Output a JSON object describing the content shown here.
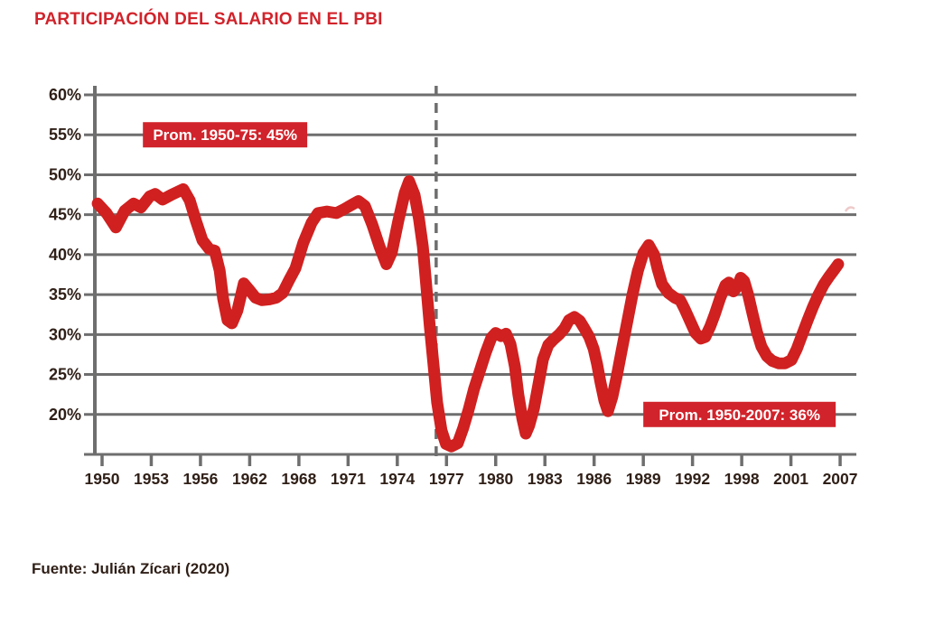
{
  "title": "PARTICIPACIÓN DEL SALARIO EN EL PBI",
  "source": "Fuente: Julián Zícari (2020)",
  "colors": {
    "accent_red": "#d1232b",
    "line_red": "#d02020",
    "grid_gray": "#6e6e6e",
    "text_dark": "#2f1f17",
    "annotation_text": "#ffffff",
    "background": "#ffffff"
  },
  "chart_data": {
    "type": "line",
    "title": "PARTICIPACIÓN DEL SALARIO EN EL PBI",
    "xlabel": "",
    "ylabel": "",
    "grid": true,
    "legend": false,
    "x_tick_labels": [
      "1950",
      "1953",
      "1956",
      "1962",
      "1968",
      "1971",
      "1974",
      "1977",
      "1980",
      "1983",
      "1986",
      "1989",
      "1992",
      "1998",
      "2001",
      "2007"
    ],
    "x_axis_note": "categorical ticks, evenly spaced",
    "y_ticks": [
      {
        "value": 60,
        "label": "60%"
      },
      {
        "value": 55,
        "label": "55%"
      },
      {
        "value": 50,
        "label": "50%"
      },
      {
        "value": 45,
        "label": "45%"
      },
      {
        "value": 40,
        "label": "40%"
      },
      {
        "value": 35,
        "label": "35%"
      },
      {
        "value": 30,
        "label": "30%"
      },
      {
        "value": 25,
        "label": "25%"
      },
      {
        "value": 20,
        "label": "20%"
      }
    ],
    "y_baseline": {
      "value": 15,
      "labeled": false
    },
    "ylim": [
      15,
      61.2
    ],
    "dashed_vline": {
      "x_units": 6.79
    },
    "annotations": [
      {
        "text": "Prom. 1950-75: 45%",
        "x0_units": 0.83,
        "x1_units": 4.17,
        "y_pct": 55
      },
      {
        "text": "Prom. 1950-2007: 36%",
        "x0_units": 11.0,
        "x1_units": 14.91,
        "y_pct": 20
      }
    ],
    "series": [
      {
        "name": "participacion-salario-en-pbi",
        "color": "#d02020",
        "points": [
          [
            -0.09,
            46.4
          ],
          [
            0.09,
            45.2
          ],
          [
            0.28,
            43.4
          ],
          [
            0.46,
            45.5
          ],
          [
            0.64,
            46.4
          ],
          [
            0.79,
            45.9
          ],
          [
            0.97,
            47.3
          ],
          [
            1.08,
            47.6
          ],
          [
            1.23,
            46.9
          ],
          [
            1.41,
            47.5
          ],
          [
            1.65,
            48.2
          ],
          [
            1.78,
            46.8
          ],
          [
            1.91,
            44.2
          ],
          [
            2.04,
            41.8
          ],
          [
            2.18,
            40.7
          ],
          [
            2.29,
            40.5
          ],
          [
            2.39,
            38.0
          ],
          [
            2.46,
            34.5
          ],
          [
            2.55,
            31.8
          ],
          [
            2.64,
            31.4
          ],
          [
            2.75,
            33.0
          ],
          [
            2.88,
            36.4
          ],
          [
            2.99,
            35.6
          ],
          [
            3.12,
            34.6
          ],
          [
            3.25,
            34.3
          ],
          [
            3.4,
            34.4
          ],
          [
            3.54,
            34.6
          ],
          [
            3.67,
            35.2
          ],
          [
            3.8,
            36.8
          ],
          [
            3.93,
            38.3
          ],
          [
            4.09,
            41.5
          ],
          [
            4.26,
            44.0
          ],
          [
            4.39,
            45.2
          ],
          [
            4.57,
            45.4
          ],
          [
            4.76,
            45.2
          ],
          [
            4.92,
            45.7
          ],
          [
            5.09,
            46.3
          ],
          [
            5.21,
            46.7
          ],
          [
            5.34,
            46.1
          ],
          [
            5.49,
            43.8
          ],
          [
            5.64,
            41.0
          ],
          [
            5.78,
            38.8
          ],
          [
            5.89,
            40.3
          ],
          [
            6.02,
            44.2
          ],
          [
            6.15,
            47.7
          ],
          [
            6.24,
            49.2
          ],
          [
            6.35,
            47.5
          ],
          [
            6.44,
            44.5
          ],
          [
            6.52,
            41.0
          ],
          [
            6.59,
            36.0
          ],
          [
            6.66,
            31.0
          ],
          [
            6.74,
            26.0
          ],
          [
            6.81,
            21.5
          ],
          [
            6.9,
            18.0
          ],
          [
            6.99,
            16.3
          ],
          [
            7.1,
            16.0
          ],
          [
            7.23,
            16.4
          ],
          [
            7.34,
            18.3
          ],
          [
            7.45,
            20.6
          ],
          [
            7.56,
            23.2
          ],
          [
            7.67,
            25.3
          ],
          [
            7.8,
            27.8
          ],
          [
            7.91,
            29.6
          ],
          [
            8.0,
            30.2
          ],
          [
            8.11,
            29.8
          ],
          [
            8.21,
            30.1
          ],
          [
            8.3,
            28.8
          ],
          [
            8.39,
            26.0
          ],
          [
            8.46,
            22.5
          ],
          [
            8.54,
            19.5
          ],
          [
            8.61,
            17.6
          ],
          [
            8.68,
            18.6
          ],
          [
            8.78,
            20.8
          ],
          [
            8.87,
            23.8
          ],
          [
            8.96,
            26.9
          ],
          [
            9.07,
            28.7
          ],
          [
            9.18,
            29.4
          ],
          [
            9.29,
            30.0
          ],
          [
            9.4,
            30.8
          ],
          [
            9.49,
            31.8
          ],
          [
            9.6,
            32.2
          ],
          [
            9.71,
            31.7
          ],
          [
            9.8,
            30.8
          ],
          [
            9.9,
            29.7
          ],
          [
            9.99,
            28.2
          ],
          [
            10.06,
            26.3
          ],
          [
            10.13,
            24.0
          ],
          [
            10.21,
            21.7
          ],
          [
            10.28,
            20.4
          ],
          [
            10.37,
            22.2
          ],
          [
            10.46,
            24.8
          ],
          [
            10.56,
            28.0
          ],
          [
            10.67,
            31.5
          ],
          [
            10.78,
            35.0
          ],
          [
            10.89,
            38.0
          ],
          [
            11.0,
            40.2
          ],
          [
            11.11,
            41.2
          ],
          [
            11.22,
            40.0
          ],
          [
            11.29,
            38.2
          ],
          [
            11.38,
            36.3
          ],
          [
            11.51,
            35.2
          ],
          [
            11.64,
            34.6
          ],
          [
            11.75,
            34.3
          ],
          [
            11.84,
            33.2
          ],
          [
            11.95,
            31.7
          ],
          [
            12.06,
            30.2
          ],
          [
            12.17,
            29.5
          ],
          [
            12.26,
            29.7
          ],
          [
            12.36,
            31.0
          ],
          [
            12.45,
            32.5
          ],
          [
            12.56,
            34.5
          ],
          [
            12.67,
            36.2
          ],
          [
            12.74,
            36.5
          ],
          [
            12.83,
            35.4
          ],
          [
            12.91,
            36.0
          ],
          [
            12.98,
            37.1
          ],
          [
            13.05,
            36.7
          ],
          [
            13.13,
            35.0
          ],
          [
            13.22,
            32.6
          ],
          [
            13.31,
            30.3
          ],
          [
            13.4,
            28.5
          ],
          [
            13.51,
            27.3
          ],
          [
            13.62,
            26.7
          ],
          [
            13.75,
            26.4
          ],
          [
            13.88,
            26.4
          ],
          [
            14.01,
            26.8
          ],
          [
            14.12,
            28.2
          ],
          [
            14.23,
            30.0
          ],
          [
            14.34,
            31.8
          ],
          [
            14.45,
            33.5
          ],
          [
            14.56,
            35.0
          ],
          [
            14.67,
            36.3
          ],
          [
            14.78,
            37.3
          ],
          [
            14.89,
            38.2
          ],
          [
            14.96,
            38.8
          ]
        ]
      }
    ]
  }
}
